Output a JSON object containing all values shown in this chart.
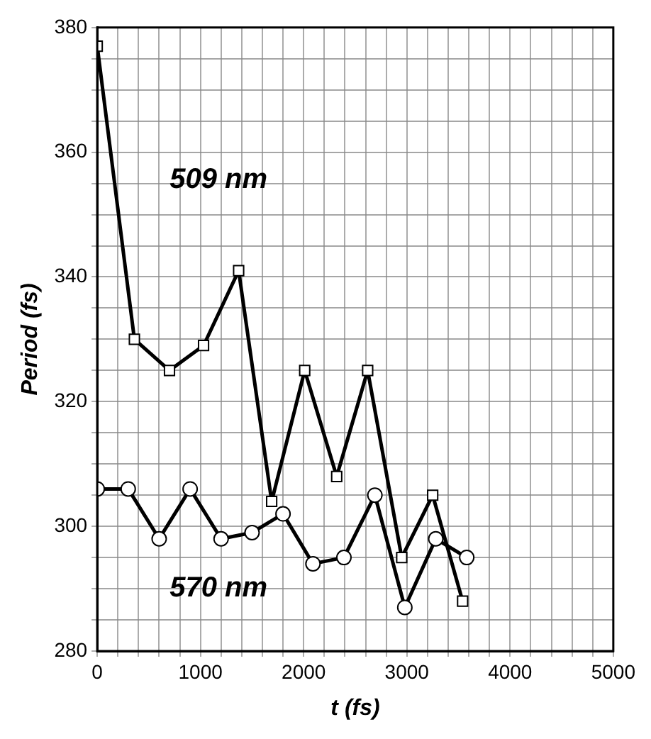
{
  "chart_data": {
    "type": "line",
    "xlabel": "t (fs)",
    "ylabel": "Period (fs)",
    "xlim": [
      0,
      5000
    ],
    "ylim": [
      280,
      380
    ],
    "xticks": [
      0,
      {
        "value": 200,
        "label": null
      },
      {
        "value": 400,
        "label": null
      },
      {
        "value": 600,
        "label": null
      },
      {
        "value": 800,
        "label": null
      },
      1000,
      {
        "value": 1200,
        "label": null
      },
      {
        "value": 1400,
        "label": null
      },
      {
        "value": 1600,
        "label": null
      },
      {
        "value": 1800,
        "label": null
      },
      2000,
      {
        "value": 2200,
        "label": null
      },
      {
        "value": 2400,
        "label": null
      },
      {
        "value": 2600,
        "label": null
      },
      {
        "value": 2800,
        "label": null
      },
      3000,
      {
        "value": 3200,
        "label": null
      },
      {
        "value": 3400,
        "label": null
      },
      {
        "value": 3600,
        "label": null
      },
      {
        "value": 3800,
        "label": null
      },
      4000,
      {
        "value": 4200,
        "label": null
      },
      {
        "value": 4400,
        "label": null
      },
      {
        "value": 4600,
        "label": null
      },
      {
        "value": 4800,
        "label": null
      },
      5000
    ],
    "yticks": [
      280,
      {
        "value": 285,
        "label": null
      },
      {
        "value": 290,
        "label": null
      },
      {
        "value": 295,
        "label": null
      },
      300,
      {
        "value": 305,
        "label": null
      },
      {
        "value": 310,
        "label": null
      },
      {
        "value": 315,
        "label": null
      },
      320,
      {
        "value": 325,
        "label": null
      },
      {
        "value": 330,
        "label": null
      },
      {
        "value": 335,
        "label": null
      },
      340,
      {
        "value": 345,
        "label": null
      },
      {
        "value": 350,
        "label": null
      },
      {
        "value": 355,
        "label": null
      },
      360,
      {
        "value": 365,
        "label": null
      },
      {
        "value": 370,
        "label": null
      },
      {
        "value": 375,
        "label": null
      },
      380
    ],
    "grid": true,
    "legend": false,
    "line_style": "solid",
    "series": [
      {
        "name": "509 nm",
        "color": "#000000",
        "marker": "square",
        "x": [
          0,
          360,
          700,
          1030,
          1370,
          1690,
          2010,
          2320,
          2620,
          2950,
          3250,
          3540
        ],
        "values": [
          377,
          330,
          325,
          329,
          341,
          304,
          325,
          308,
          325,
          295,
          305,
          288
        ]
      },
      {
        "name": "570 nm",
        "color": "#000000",
        "marker": "circle",
        "x": [
          0,
          300,
          600,
          900,
          1200,
          1500,
          1800,
          2090,
          2390,
          2690,
          2980,
          3280,
          3580
        ],
        "values": [
          306,
          306,
          298,
          306,
          298,
          299,
          302,
          294,
          295,
          305,
          287,
          298,
          295
        ]
      }
    ]
  }
}
